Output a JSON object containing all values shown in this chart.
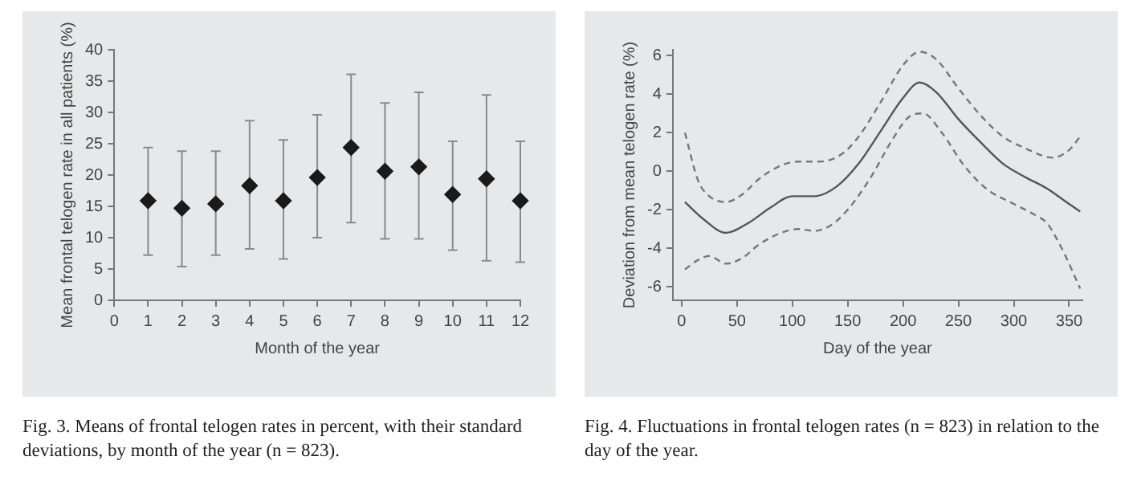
{
  "chart_data": [
    {
      "type": "scatter",
      "xlabel": "Month of the year",
      "ylabel": "Mean frontal telogen rate in all patients (%)",
      "x": [
        1,
        2,
        3,
        4,
        5,
        6,
        7,
        8,
        9,
        10,
        11,
        12
      ],
      "values": [
        15.9,
        14.7,
        15.4,
        18.3,
        15.9,
        19.6,
        24.4,
        20.6,
        21.3,
        16.9,
        19.4,
        15.9
      ],
      "errors": [
        [
          7.2,
          24.4
        ],
        [
          5.4,
          23.8
        ],
        [
          7.2,
          23.8
        ],
        [
          8.2,
          28.7
        ],
        [
          6.6,
          25.6
        ],
        [
          10.0,
          29.6
        ],
        [
          12.4,
          36.1
        ],
        [
          9.8,
          31.5
        ],
        [
          9.8,
          33.2
        ],
        [
          8.0,
          25.4
        ],
        [
          6.3,
          32.8
        ],
        [
          6.1,
          25.4
        ]
      ],
      "color": "#1a1a1a",
      "marker": "diamond",
      "xlim": [
        0,
        12
      ],
      "xticks": [
        0,
        1,
        2,
        3,
        4,
        5,
        6,
        7,
        8,
        9,
        10,
        11,
        12
      ],
      "ylim": [
        0,
        40
      ],
      "yticks": [
        0,
        5,
        10,
        15,
        20,
        25,
        30,
        35,
        40
      ],
      "grid": false,
      "annotations": [
        "Fig. 3. Means of frontal telogen rates in percent, with their standard deviations, by month of the year (n = 823)."
      ]
    },
    {
      "type": "line",
      "xlabel": "Day of the year",
      "ylabel": "Deviation from mean telogen rate (%)",
      "marker": "none",
      "grid": false,
      "xlim": [
        -8,
        362
      ],
      "xticks": [
        0,
        50,
        100,
        150,
        200,
        250,
        300,
        350
      ],
      "ylim": [
        -6.7,
        6.3
      ],
      "yticks": [
        -6,
        -4,
        -2,
        0,
        2,
        4,
        6
      ],
      "series": [
        {
          "color": "#555555",
          "line_style": "solid",
          "x": [
            3,
            20,
            40,
            60,
            80,
            100,
            120,
            140,
            160,
            180,
            200,
            215,
            230,
            250,
            270,
            290,
            310,
            330,
            345,
            360
          ],
          "values": [
            -1.6,
            -2.5,
            -3.2,
            -2.7,
            -1.9,
            -1.3,
            -1.3,
            -0.8,
            0.4,
            2.1,
            3.8,
            4.6,
            4.1,
            2.7,
            1.5,
            0.4,
            -0.3,
            -0.9,
            -1.5,
            -2.1
          ]
        },
        {
          "color": "#777777",
          "line_style": "dashed",
          "x": [
            3,
            15,
            25,
            40,
            55,
            70,
            90,
            105,
            125,
            145,
            160,
            180,
            200,
            215,
            230,
            250,
            270,
            290,
            310,
            335,
            350,
            360
          ],
          "values": [
            2.0,
            -0.5,
            -1.3,
            -1.6,
            -1.2,
            -0.4,
            0.3,
            0.5,
            0.5,
            0.9,
            1.8,
            3.6,
            5.5,
            6.2,
            5.8,
            4.3,
            2.9,
            1.8,
            1.2,
            0.7,
            1.1,
            1.8
          ]
        },
        {
          "color": "#777777",
          "line_style": "dashed",
          "x": [
            3,
            15,
            25,
            40,
            55,
            70,
            90,
            105,
            120,
            135,
            150,
            170,
            190,
            205,
            218,
            235,
            255,
            275,
            300,
            320,
            330,
            345,
            360
          ],
          "values": [
            -5.1,
            -4.6,
            -4.4,
            -4.8,
            -4.5,
            -3.8,
            -3.2,
            -3.0,
            -3.1,
            -2.8,
            -2.0,
            -0.4,
            1.6,
            2.8,
            3.0,
            2.0,
            0.3,
            -0.9,
            -1.7,
            -2.3,
            -2.7,
            -4.2,
            -6.1
          ]
        }
      ],
      "annotations": [
        "Fig. 4. Fluctuations in frontal telogen rates (n = 823) in relation to the day of the year."
      ]
    }
  ]
}
